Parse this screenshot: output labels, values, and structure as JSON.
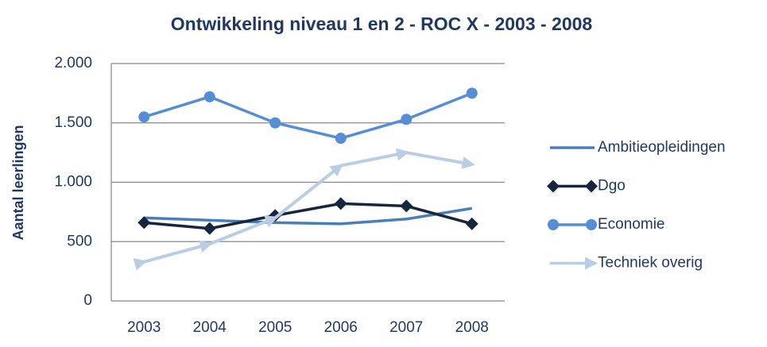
{
  "chart_data": {
    "type": "line",
    "title": "Ontwikkeling niveau 1 en 2 - ROC X - 2003 - 2008",
    "y_label": "Aantal leerlingen",
    "categories": [
      "2003",
      "2004",
      "2005",
      "2006",
      "2007",
      "2008"
    ],
    "series": [
      {
        "name": "Ambitieopleidingen",
        "color": "#4a7ebb",
        "marker": "none",
        "values": [
          700,
          680,
          660,
          650,
          690,
          780
        ]
      },
      {
        "name": "Dgo",
        "color": "#17263f",
        "marker": "diamond",
        "values": [
          660,
          610,
          720,
          820,
          800,
          650
        ]
      },
      {
        "name": "Economie",
        "color": "#558ed5",
        "marker": "circle",
        "values": [
          1550,
          1720,
          1500,
          1370,
          1530,
          1750
        ]
      },
      {
        "name": "Techniek overig",
        "color": "#b9cde5",
        "marker": "arrow",
        "values": [
          330,
          480,
          700,
          1140,
          1250,
          1150
        ]
      }
    ],
    "ylim": [
      0,
      2000
    ],
    "yticks": [
      0,
      500,
      {
        "value": 1000,
        "label": "1.000"
      },
      {
        "value": 1500,
        "label": "1.500"
      },
      {
        "value": 2000,
        "label": "2.000"
      }
    ],
    "grid": true,
    "legend": "right"
  }
}
